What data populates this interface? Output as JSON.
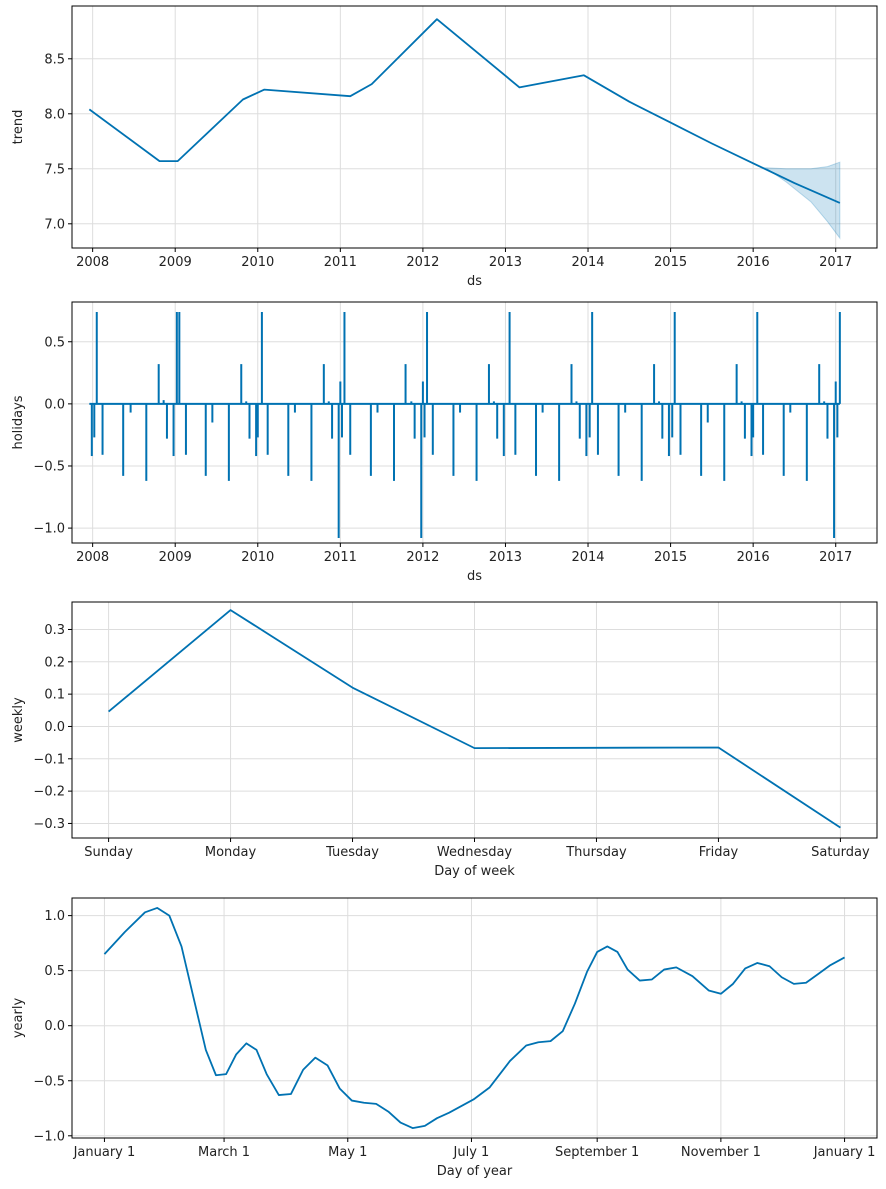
{
  "colors": {
    "line": "#0072B2",
    "band": "#0072B2",
    "grid": "#dddddd",
    "axis": "#000000",
    "background": "#ffffff"
  },
  "chart_data": [
    {
      "id": "trend",
      "type": "line",
      "xlabel": "ds",
      "ylabel": "trend",
      "xlim": [
        2007.75,
        2017.5
      ],
      "ylim": [
        6.78,
        8.98
      ],
      "xticks": [
        2008,
        2009,
        2010,
        2011,
        2012,
        2013,
        2014,
        2015,
        2016,
        2017
      ],
      "xtick_labels": [
        "2008",
        "2009",
        "2010",
        "2011",
        "2012",
        "2013",
        "2014",
        "2015",
        "2016",
        "2017"
      ],
      "yticks": [
        7.0,
        7.5,
        8.0,
        8.5
      ],
      "ytick_labels": [
        "7.0",
        "7.5",
        "8.0",
        "8.5"
      ],
      "grid": true,
      "series": [
        {
          "name": "trend",
          "x": [
            2007.96,
            2008.81,
            2009.03,
            2009.82,
            2010.08,
            2011.12,
            2011.38,
            2012.17,
            2013.17,
            2013.45,
            2013.95,
            2014.5,
            2015.0,
            2015.5,
            2016.0,
            2016.5,
            2017.05
          ],
          "y": [
            8.04,
            7.57,
            7.57,
            8.13,
            8.22,
            8.16,
            8.27,
            8.86,
            8.24,
            8.28,
            8.35,
            8.11,
            7.92,
            7.73,
            7.55,
            7.37,
            7.19
          ]
        }
      ],
      "uncertainty": {
        "x": [
          2016.15,
          2016.4,
          2016.7,
          2016.9,
          2017.05
        ],
        "upper": [
          7.51,
          7.5,
          7.5,
          7.52,
          7.56
        ],
        "lower": [
          7.51,
          7.38,
          7.2,
          7.02,
          6.87
        ]
      }
    },
    {
      "id": "holidays",
      "type": "line",
      "xlabel": "ds",
      "ylabel": "holidays",
      "xlim": [
        2007.75,
        2017.5
      ],
      "ylim": [
        -1.12,
        0.82
      ],
      "xticks": [
        2008,
        2009,
        2010,
        2011,
        2012,
        2013,
        2014,
        2015,
        2016,
        2017
      ],
      "xtick_labels": [
        "2008",
        "2009",
        "2010",
        "2011",
        "2012",
        "2013",
        "2014",
        "2015",
        "2016",
        "2017"
      ],
      "yticks": [
        -1.0,
        -0.5,
        0.0,
        0.5
      ],
      "ytick_labels": [
        "−1.0",
        "−0.5",
        "0.0",
        "0.5"
      ],
      "grid": true,
      "baseline": {
        "x": [
          2007.96,
          2017.05
        ],
        "y": 0.0
      },
      "spikes": {
        "x": [
          2007.99,
          2008.02,
          2008.05,
          2008.12,
          2008.37,
          2008.46,
          2008.65,
          2008.8,
          2008.86,
          2008.9,
          2008.98,
          2009.02,
          2009.05,
          2009.13,
          2009.37,
          2009.45,
          2009.65,
          2009.8,
          2009.86,
          2009.9,
          2009.98,
          2010.0,
          2010.05,
          2010.12,
          2010.37,
          2010.45,
          2010.65,
          2010.8,
          2010.86,
          2010.9,
          2010.98,
          2011.0,
          2011.02,
          2011.05,
          2011.12,
          2011.37,
          2011.45,
          2011.65,
          2011.79,
          2011.86,
          2011.9,
          2011.98,
          2012.0,
          2012.02,
          2012.05,
          2012.12,
          2012.37,
          2012.45,
          2012.65,
          2012.8,
          2012.86,
          2012.9,
          2012.98,
          2013.05,
          2013.12,
          2013.37,
          2013.45,
          2013.65,
          2013.8,
          2013.86,
          2013.9,
          2013.98,
          2014.02,
          2014.05,
          2014.12,
          2014.37,
          2014.45,
          2014.65,
          2014.8,
          2014.86,
          2014.9,
          2014.98,
          2015.02,
          2015.05,
          2015.12,
          2015.37,
          2015.45,
          2015.65,
          2015.8,
          2015.86,
          2015.9,
          2015.98,
          2016.0,
          2016.05,
          2016.12,
          2016.37,
          2016.45,
          2016.65,
          2016.8,
          2016.86,
          2016.9,
          2016.98,
          2017.0,
          2017.02,
          2017.05
        ],
        "y": [
          -0.42,
          -0.27,
          0.74,
          -0.41,
          -0.58,
          -0.07,
          -0.62,
          0.32,
          0.03,
          -0.28,
          -0.42,
          0.74,
          0.74,
          -0.41,
          -0.58,
          -0.15,
          -0.62,
          0.32,
          0.02,
          -0.28,
          -0.42,
          -0.27,
          0.74,
          -0.41,
          -0.58,
          -0.07,
          -0.62,
          0.32,
          0.02,
          -0.28,
          -1.08,
          0.18,
          -0.27,
          0.74,
          -0.41,
          -0.58,
          -0.07,
          -0.62,
          0.32,
          0.02,
          -0.28,
          -1.08,
          0.18,
          -0.27,
          0.74,
          -0.41,
          -0.58,
          -0.07,
          -0.62,
          0.32,
          0.02,
          -0.28,
          -0.42,
          0.74,
          -0.41,
          -0.58,
          -0.07,
          -0.62,
          0.32,
          0.02,
          -0.28,
          -0.42,
          -0.27,
          0.74,
          -0.41,
          -0.58,
          -0.07,
          -0.62,
          0.32,
          0.02,
          -0.28,
          -0.42,
          -0.27,
          0.74,
          -0.41,
          -0.58,
          -0.15,
          -0.62,
          0.32,
          0.02,
          -0.28,
          -0.42,
          -0.27,
          0.74,
          -0.41,
          -0.58,
          -0.07,
          -0.62,
          0.32,
          0.02,
          -0.28,
          -1.08,
          0.18,
          -0.27,
          0.74
        ]
      }
    },
    {
      "id": "weekly",
      "type": "line",
      "xlabel": "Day of week",
      "ylabel": "weekly",
      "xlim": [
        -0.3,
        6.3
      ],
      "ylim": [
        -0.345,
        0.385
      ],
      "xticks": [
        0,
        1,
        2,
        3,
        4,
        5,
        6
      ],
      "xtick_labels": [
        "Sunday",
        "Monday",
        "Tuesday",
        "Wednesday",
        "Thursday",
        "Friday",
        "Saturday"
      ],
      "yticks": [
        -0.3,
        -0.2,
        -0.1,
        0.0,
        0.1,
        0.2,
        0.3
      ],
      "ytick_labels": [
        "−0.3",
        "−0.2",
        "−0.1",
        "0.0",
        "0.1",
        "0.2",
        "0.3"
      ],
      "grid": true,
      "series": [
        {
          "name": "weekly",
          "x": [
            0,
            1,
            2,
            3,
            4,
            5,
            6
          ],
          "y": [
            0.046,
            0.36,
            0.12,
            -0.067,
            -0.066,
            -0.065,
            -0.313
          ]
        }
      ]
    },
    {
      "id": "yearly",
      "type": "line",
      "xlabel": "Day of year",
      "ylabel": "yearly",
      "xlim": [
        -16,
        381
      ],
      "ylim": [
        -1.02,
        1.16
      ],
      "xticks": [
        0,
        59,
        120,
        181,
        243,
        304,
        365
      ],
      "xtick_labels": [
        "January 1",
        "March 1",
        "May 1",
        "July 1",
        "September 1",
        "November 1",
        "January 1"
      ],
      "yticks": [
        -1.0,
        -0.5,
        0.0,
        0.5,
        1.0
      ],
      "ytick_labels": [
        "−1.0",
        "−0.5",
        "0.0",
        "0.5",
        "1.0"
      ],
      "grid": true,
      "series": [
        {
          "name": "yearly",
          "x": [
            0,
            10,
            20,
            26,
            32,
            38,
            44,
            50,
            55,
            60,
            65,
            70,
            75,
            80,
            86,
            92,
            98,
            104,
            110,
            116,
            122,
            128,
            134,
            140,
            146,
            152,
            158,
            164,
            170,
            176,
            182,
            190,
            200,
            208,
            214,
            220,
            226,
            232,
            238,
            243,
            248,
            253,
            258,
            264,
            270,
            276,
            282,
            290,
            298,
            304,
            310,
            316,
            322,
            328,
            334,
            340,
            346,
            352,
            358,
            365
          ],
          "y": [
            0.65,
            0.85,
            1.03,
            1.07,
            1.0,
            0.72,
            0.25,
            -0.22,
            -0.45,
            -0.44,
            -0.26,
            -0.16,
            -0.22,
            -0.44,
            -0.63,
            -0.62,
            -0.4,
            -0.29,
            -0.36,
            -0.57,
            -0.68,
            -0.7,
            -0.71,
            -0.78,
            -0.88,
            -0.93,
            -0.91,
            -0.84,
            -0.79,
            -0.73,
            -0.67,
            -0.56,
            -0.32,
            -0.18,
            -0.15,
            -0.14,
            -0.05,
            0.2,
            0.49,
            0.67,
            0.72,
            0.67,
            0.51,
            0.41,
            0.42,
            0.51,
            0.53,
            0.45,
            0.32,
            0.29,
            0.38,
            0.52,
            0.57,
            0.54,
            0.44,
            0.38,
            0.39,
            0.47,
            0.55,
            0.62
          ]
        }
      ]
    }
  ]
}
